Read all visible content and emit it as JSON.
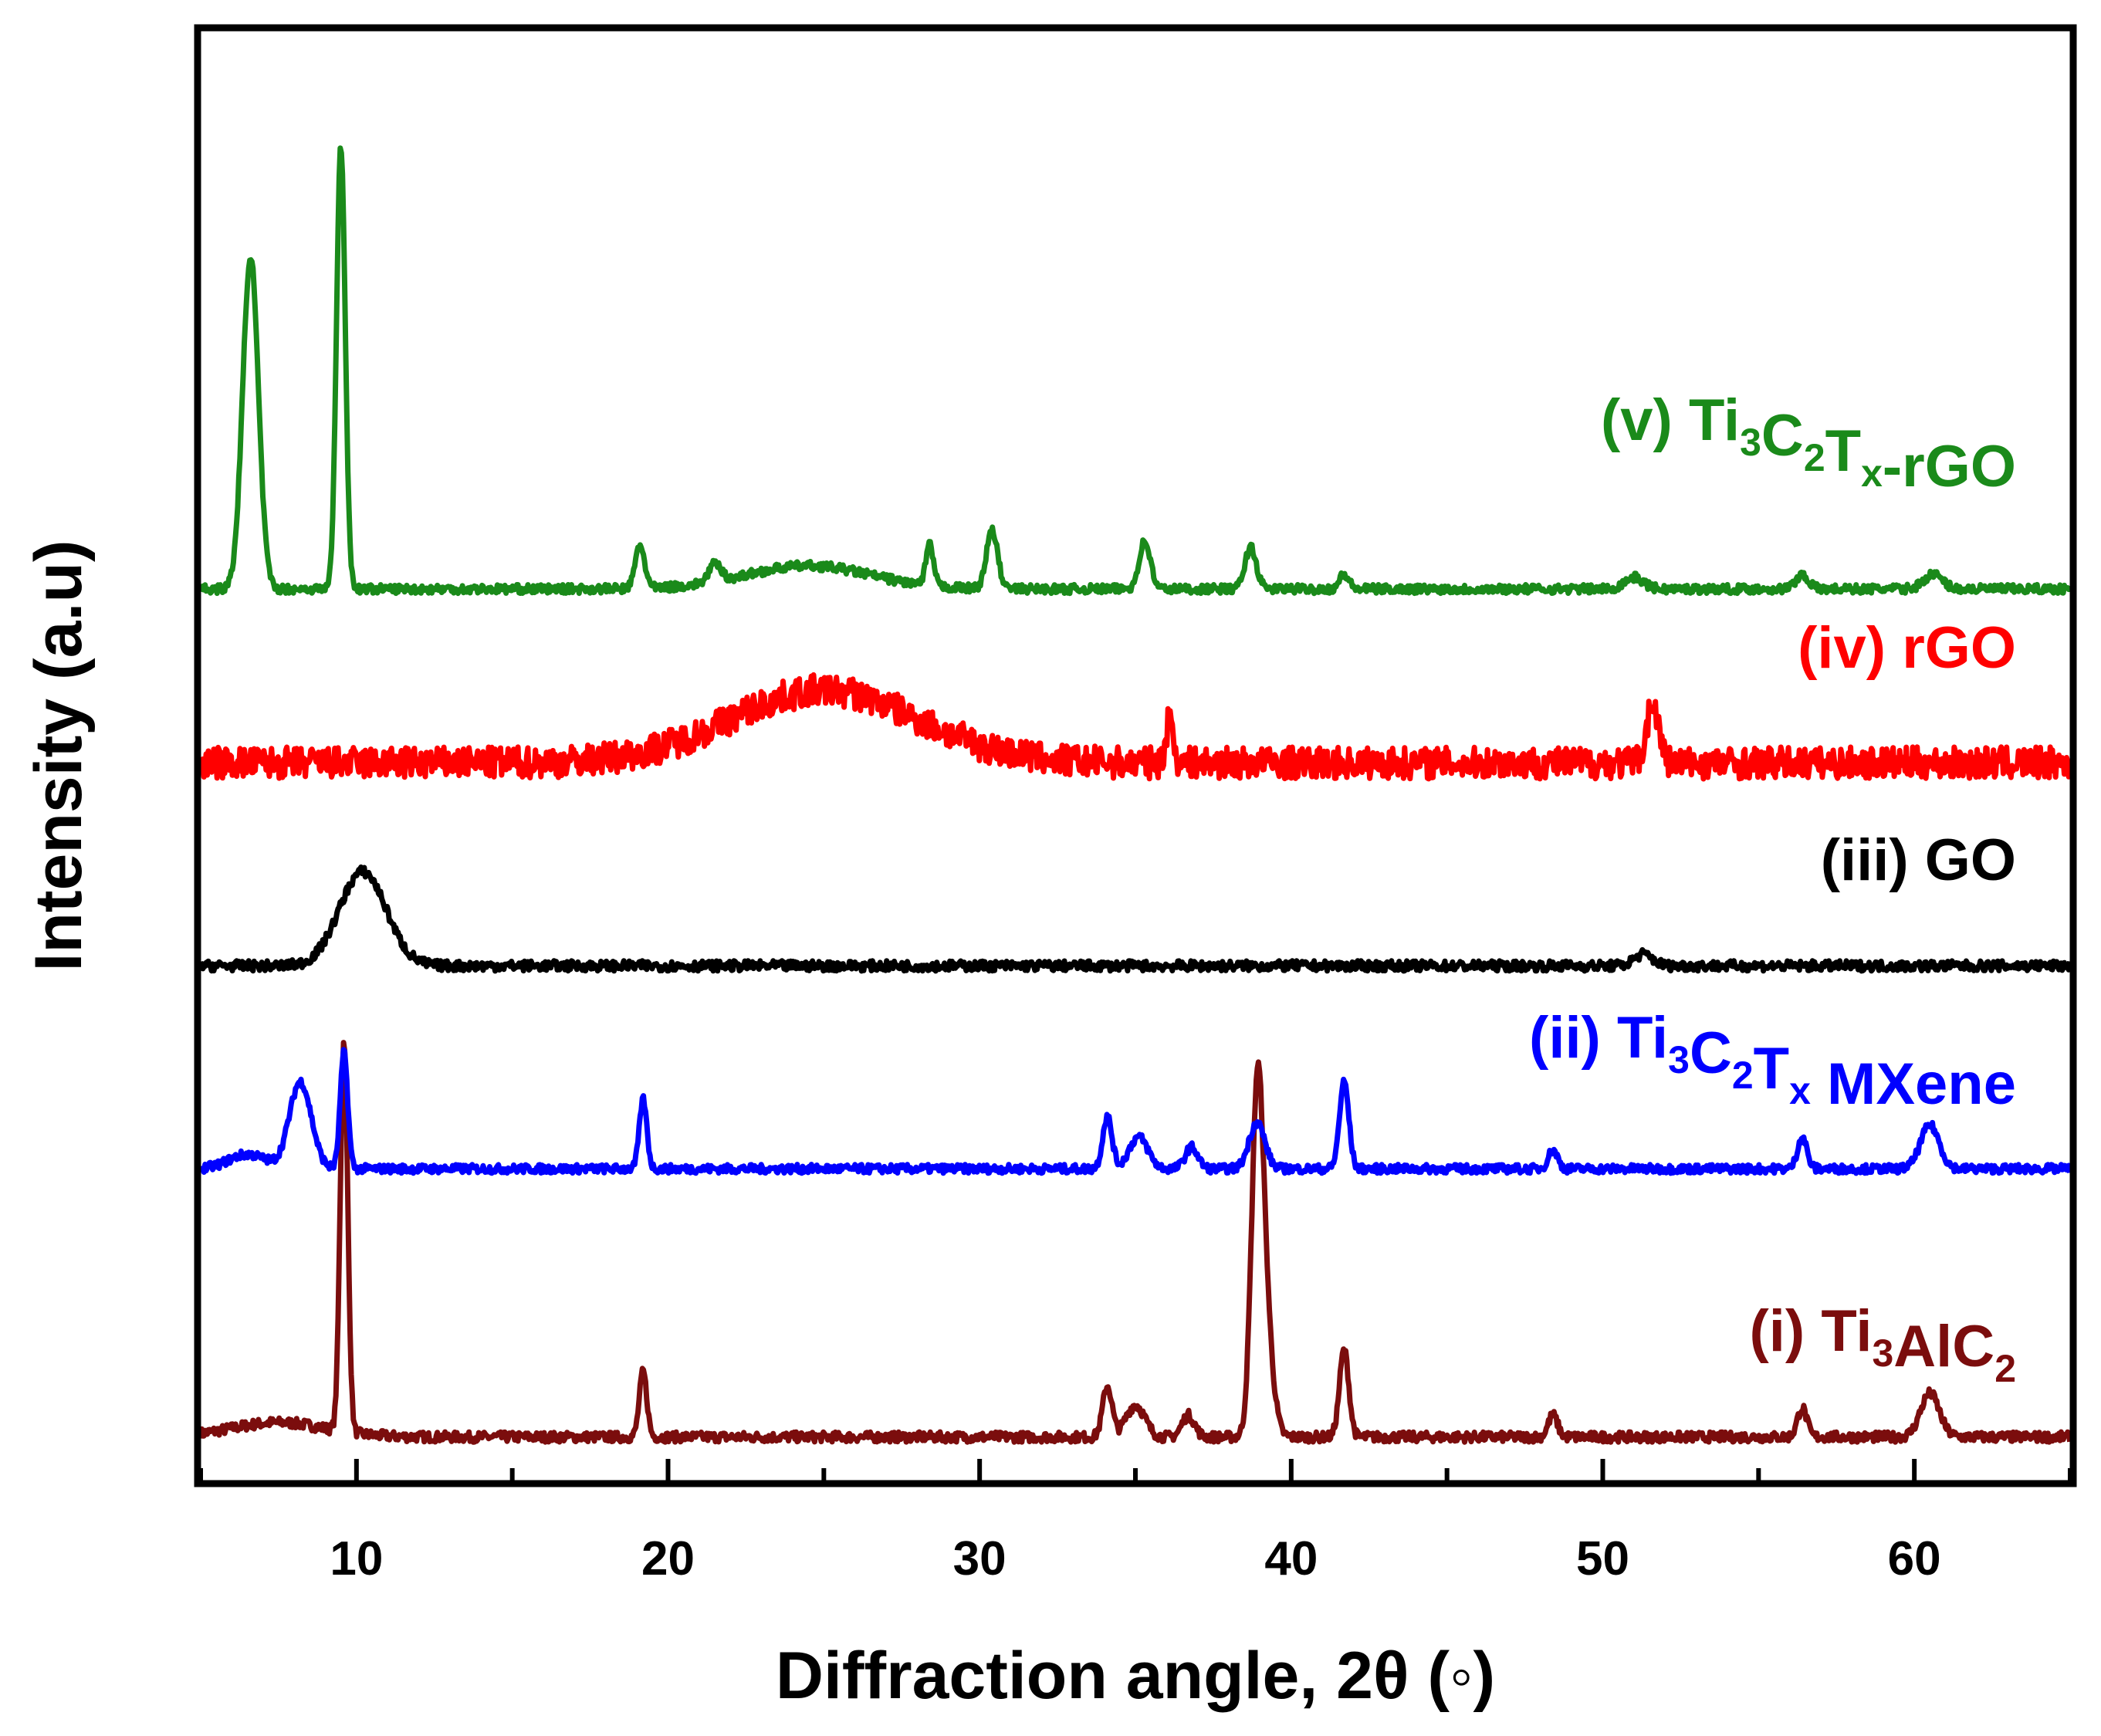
{
  "chart_data": {
    "type": "line",
    "title": "",
    "xlabel": "Diffraction angle, 2θ (◦)",
    "ylabel": "Intensity (a.u)",
    "xlim": [
      5,
      65
    ],
    "ylim": [
      0,
      100
    ],
    "xticks": [
      10,
      20,
      30,
      40,
      50,
      60
    ],
    "xtick_labels": [
      "10",
      "20",
      "30",
      "40",
      "50",
      "60"
    ],
    "yticks_shown": false,
    "series": [
      {
        "name": "(i) Ti3AlC2",
        "label_parts": {
          "prefix": "(i) Ti",
          "s1": "3",
          "mid1": "AlC",
          "s2": "2"
        },
        "color": "#7b0d0d",
        "baseline": 3.0,
        "noise": 0.35,
        "peaks": [
          [
            9.6,
            27.0,
            0.12
          ],
          [
            19.2,
            4.5,
            0.12
          ],
          [
            34.1,
            3.5,
            0.15
          ],
          [
            35.0,
            2.2,
            0.3
          ],
          [
            36.7,
            1.5,
            0.2
          ],
          [
            38.9,
            18.0,
            0.18
          ],
          [
            39.1,
            10.0,
            0.25
          ],
          [
            41.7,
            6.0,
            0.15
          ],
          [
            48.4,
            1.5,
            0.15
          ],
          [
            56.4,
            2.0,
            0.15
          ],
          [
            60.5,
            3.0,
            0.3
          ],
          [
            7.5,
            1.0,
            1.5
          ]
        ]
      },
      {
        "name": "(ii) Ti3C2Tx MXene",
        "label_parts": {
          "prefix": "(ii) Ti",
          "s1": "3",
          "mid1": "C",
          "s2": "2",
          "mid2": "T",
          "s3": "x",
          "suffix": " MXene"
        },
        "color": "#0000ff",
        "baseline": 21.5,
        "noise": 0.3,
        "peaks": [
          [
            8.2,
            6.0,
            0.35
          ],
          [
            9.6,
            8.0,
            0.12
          ],
          [
            19.2,
            4.8,
            0.12
          ],
          [
            34.1,
            3.6,
            0.15
          ],
          [
            35.1,
            2.2,
            0.3
          ],
          [
            36.8,
            1.5,
            0.2
          ],
          [
            38.9,
            3.2,
            0.25
          ],
          [
            41.7,
            6.0,
            0.15
          ],
          [
            48.4,
            1.3,
            0.15
          ],
          [
            56.4,
            2.2,
            0.15
          ],
          [
            60.5,
            3.0,
            0.3
          ],
          [
            6.5,
            1.0,
            0.6
          ]
        ]
      },
      {
        "name": "(iii) GO",
        "label_parts": {
          "prefix": "(iii) GO"
        },
        "color": "#000000",
        "baseline": 35.5,
        "noise": 0.35,
        "peaks": [
          [
            10.2,
            6.5,
            0.75
          ],
          [
            51.3,
            0.8,
            0.3
          ]
        ]
      },
      {
        "name": "(iv) rGO",
        "label_parts": {
          "prefix": "(iv) rGO"
        },
        "color": "#ff0000",
        "baseline": 49.5,
        "noise": 1.1,
        "peaks": [
          [
            25.0,
            5.0,
            3.0
          ],
          [
            36.1,
            3.0,
            0.12
          ],
          [
            51.6,
            4.0,
            0.2
          ]
        ]
      },
      {
        "name": "(v) Ti3C2Tx-rGO",
        "label_parts": {
          "prefix": "(v) Ti",
          "s1": "3",
          "mid1": "C",
          "s2": "2",
          "mid2": "T",
          "s3": "x",
          "suffix": "-rGO"
        },
        "color": "#1a8a1a",
        "baseline": 61.5,
        "noise": 0.3,
        "peaks": [
          [
            6.6,
            23.0,
            0.25
          ],
          [
            9.5,
            30.5,
            0.14
          ],
          [
            19.1,
            3.0,
            0.15
          ],
          [
            21.5,
            1.2,
            0.2
          ],
          [
            24.5,
            1.6,
            2.0
          ],
          [
            28.4,
            2.8,
            0.12
          ],
          [
            30.4,
            4.0,
            0.18
          ],
          [
            35.3,
            3.3,
            0.18
          ],
          [
            38.7,
            2.9,
            0.18
          ],
          [
            41.7,
            1.0,
            0.15
          ],
          [
            51.0,
            0.8,
            0.3
          ],
          [
            56.4,
            1.0,
            0.2
          ],
          [
            60.6,
            1.0,
            0.3
          ]
        ]
      }
    ]
  }
}
